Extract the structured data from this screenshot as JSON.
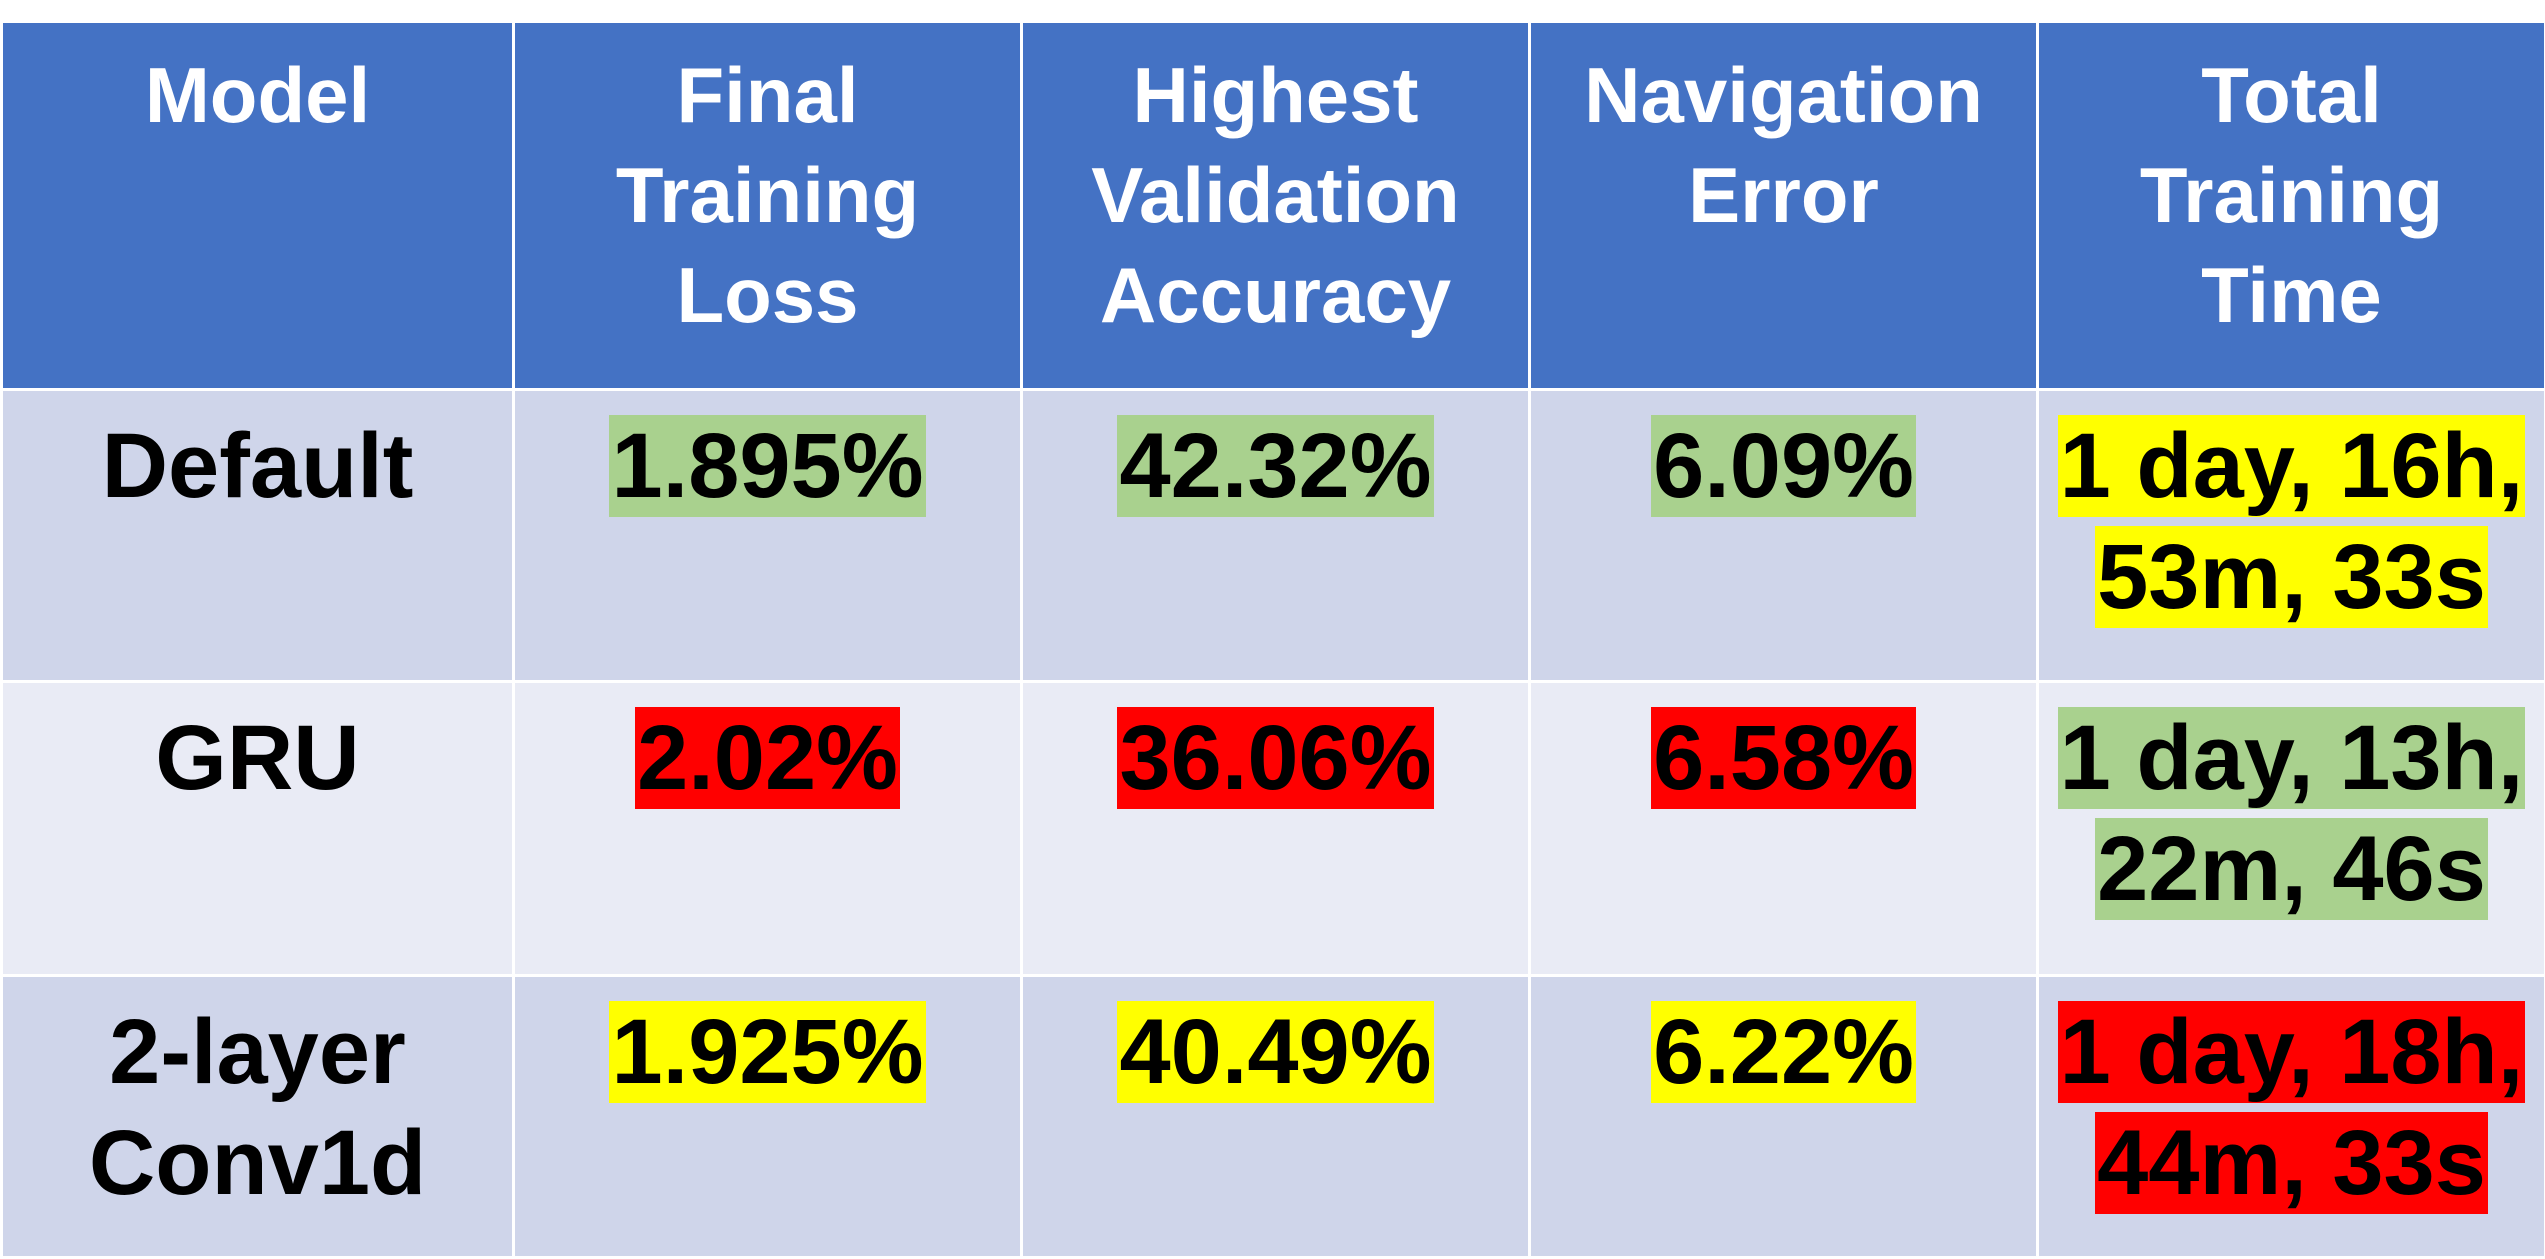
{
  "table": {
    "headers": [
      {
        "id": "model",
        "label": "Model"
      },
      {
        "id": "final-training-loss",
        "label": "Final Training Loss"
      },
      {
        "id": "highest-validation-accuracy",
        "label": "Highest Validation Accuracy"
      },
      {
        "id": "navigation-error",
        "label": "Navigation Error"
      },
      {
        "id": "total-training-time",
        "label": "Total Training Time"
      }
    ],
    "rows": [
      {
        "model": "Default",
        "cells": [
          {
            "value": "1.895%",
            "highlight": "#a9d18e"
          },
          {
            "value": "42.32%",
            "highlight": "#a9d18e"
          },
          {
            "value": "6.09%",
            "highlight": "#a9d18e"
          },
          {
            "value": "1 day, 16h, 53m, 33s",
            "highlight": "#ffff00"
          }
        ]
      },
      {
        "model": "GRU",
        "cells": [
          {
            "value": "2.02%",
            "highlight": "#ff0000"
          },
          {
            "value": "36.06%",
            "highlight": "#ff0000"
          },
          {
            "value": "6.58%",
            "highlight": "#ff0000"
          },
          {
            "value": "1 day, 13h, 22m, 46s",
            "highlight": "#a9d18e"
          }
        ]
      },
      {
        "model": "2-layer Conv1d",
        "cells": [
          {
            "value": "1.925%",
            "highlight": "#ffff00"
          },
          {
            "value": "40.49%",
            "highlight": "#ffff00"
          },
          {
            "value": "6.22%",
            "highlight": "#ffff00"
          },
          {
            "value": "1 day, 18h, 44m, 33s",
            "highlight": "#ff0000"
          }
        ]
      }
    ]
  },
  "colors": {
    "header_background": "#4472c4",
    "row_band_dark": "#cfd5ea",
    "row_band_light": "#e9ebf5",
    "best": "#a9d18e",
    "middle": "#ffff00",
    "worst": "#ff0000"
  }
}
